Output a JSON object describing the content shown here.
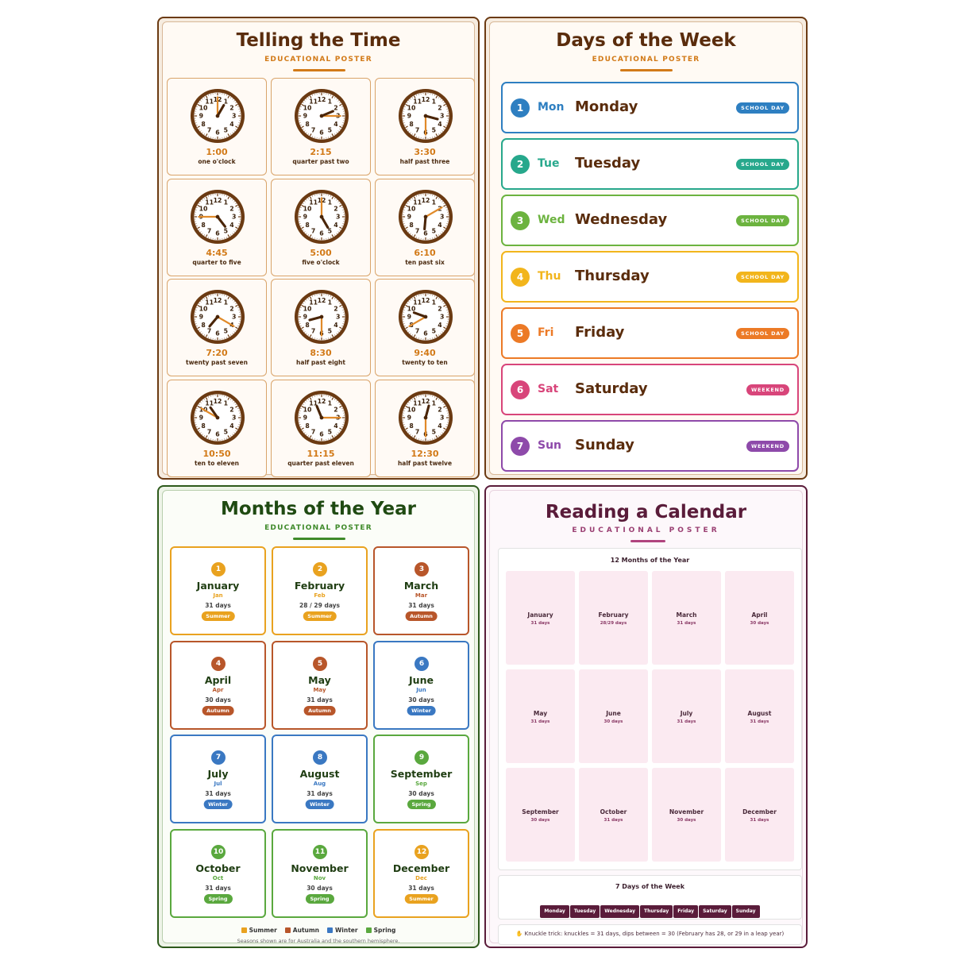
{
  "time_poster": {
    "title": "Telling the Time",
    "subtitle": "EDUCATIONAL POSTER",
    "clocks": [
      {
        "digital": "1:00",
        "words": "one o'clock",
        "hour": 1,
        "minute": 0
      },
      {
        "digital": "2:15",
        "words": "quarter past two",
        "hour": 2,
        "minute": 15
      },
      {
        "digital": "3:30",
        "words": "half past three",
        "hour": 3,
        "minute": 30
      },
      {
        "digital": "4:45",
        "words": "quarter to five",
        "hour": 4,
        "minute": 45
      },
      {
        "digital": "5:00",
        "words": "five o'clock",
        "hour": 5,
        "minute": 0
      },
      {
        "digital": "6:10",
        "words": "ten past six",
        "hour": 6,
        "minute": 10
      },
      {
        "digital": "7:20",
        "words": "twenty past seven",
        "hour": 7,
        "minute": 20
      },
      {
        "digital": "8:30",
        "words": "half past eight",
        "hour": 8,
        "minute": 30
      },
      {
        "digital": "9:40",
        "words": "twenty to ten",
        "hour": 9,
        "minute": 40
      },
      {
        "digital": "10:50",
        "words": "ten to eleven",
        "hour": 10,
        "minute": 50
      },
      {
        "digital": "11:15",
        "words": "quarter past eleven",
        "hour": 11,
        "minute": 15
      },
      {
        "digital": "12:30",
        "words": "half past twelve",
        "hour": 12,
        "minute": 30
      }
    ]
  },
  "days_poster": {
    "title": "Days of the Week",
    "subtitle": "EDUCATIONAL POSTER",
    "days": [
      {
        "num": "1",
        "abbr": "Mon",
        "name": "Monday",
        "badge": "SCHOOL DAY",
        "color": "#2e7fc1"
      },
      {
        "num": "2",
        "abbr": "Tue",
        "name": "Tuesday",
        "badge": "SCHOOL DAY",
        "color": "#27a88c"
      },
      {
        "num": "3",
        "abbr": "Wed",
        "name": "Wednesday",
        "badge": "SCHOOL DAY",
        "color": "#6cb33f"
      },
      {
        "num": "4",
        "abbr": "Thu",
        "name": "Thursday",
        "badge": "SCHOOL DAY",
        "color": "#f2b51c"
      },
      {
        "num": "5",
        "abbr": "Fri",
        "name": "Friday",
        "badge": "SCHOOL DAY",
        "color": "#ec7a26"
      },
      {
        "num": "6",
        "abbr": "Sat",
        "name": "Saturday",
        "badge": "WEEKEND",
        "color": "#d8457a"
      },
      {
        "num": "7",
        "abbr": "Sun",
        "name": "Sunday",
        "badge": "WEEKEND",
        "color": "#8e4aaa"
      }
    ]
  },
  "months_poster": {
    "title": "Months of the Year",
    "subtitle": "EDUCATIONAL POSTER",
    "months": [
      {
        "num": "1",
        "name": "January",
        "abbr": "Jan",
        "days": "31 days",
        "season": "Summer"
      },
      {
        "num": "2",
        "name": "February",
        "abbr": "Feb",
        "days": "28 / 29 days",
        "season": "Summer"
      },
      {
        "num": "3",
        "name": "March",
        "abbr": "Mar",
        "days": "31 days",
        "season": "Autumn"
      },
      {
        "num": "4",
        "name": "April",
        "abbr": "Apr",
        "days": "30 days",
        "season": "Autumn"
      },
      {
        "num": "5",
        "name": "May",
        "abbr": "May",
        "days": "31 days",
        "season": "Autumn"
      },
      {
        "num": "6",
        "name": "June",
        "abbr": "Jun",
        "days": "30 days",
        "season": "Winter"
      },
      {
        "num": "7",
        "name": "July",
        "abbr": "Jul",
        "days": "31 days",
        "season": "Winter"
      },
      {
        "num": "8",
        "name": "August",
        "abbr": "Aug",
        "days": "31 days",
        "season": "Winter"
      },
      {
        "num": "9",
        "name": "September",
        "abbr": "Sep",
        "days": "30 days",
        "season": "Spring"
      },
      {
        "num": "10",
        "name": "October",
        "abbr": "Oct",
        "days": "31 days",
        "season": "Spring"
      },
      {
        "num": "11",
        "name": "November",
        "abbr": "Nov",
        "days": "30 days",
        "season": "Spring"
      },
      {
        "num": "12",
        "name": "December",
        "abbr": "Dec",
        "days": "31 days",
        "season": "Summer"
      }
    ],
    "season_colors": {
      "Summer": "#e9a21f",
      "Autumn": "#b8562a",
      "Winter": "#3a78c2",
      "Spring": "#5aa83e"
    },
    "legend": [
      "Summer",
      "Autumn",
      "Winter",
      "Spring"
    ],
    "note": "Seasons shown are for Australia and the southern hemisphere."
  },
  "calendar_poster": {
    "title": "Reading a Calendar",
    "subtitle": "EDUCATIONAL POSTER",
    "months_heading": "12 Months of the Year",
    "months": [
      {
        "name": "January",
        "days": "31 days"
      },
      {
        "name": "February",
        "days": "28/29 days"
      },
      {
        "name": "March",
        "days": "31 days"
      },
      {
        "name": "April",
        "days": "30 days"
      },
      {
        "name": "May",
        "days": "31 days"
      },
      {
        "name": "June",
        "days": "30 days"
      },
      {
        "name": "July",
        "days": "31 days"
      },
      {
        "name": "August",
        "days": "31 days"
      },
      {
        "name": "September",
        "days": "30 days"
      },
      {
        "name": "October",
        "days": "31 days"
      },
      {
        "name": "November",
        "days": "30 days"
      },
      {
        "name": "December",
        "days": "31 days"
      }
    ],
    "week_heading": "7 Days of the Week",
    "week_days": [
      "Monday",
      "Tuesday",
      "Wednesday",
      "Thursday",
      "Friday",
      "Saturday",
      "Sunday"
    ],
    "knuckle_tip": "✋ Knuckle trick: knuckles = 31 days, dips between = 30 (February has 28, or 29 in a leap year)"
  }
}
